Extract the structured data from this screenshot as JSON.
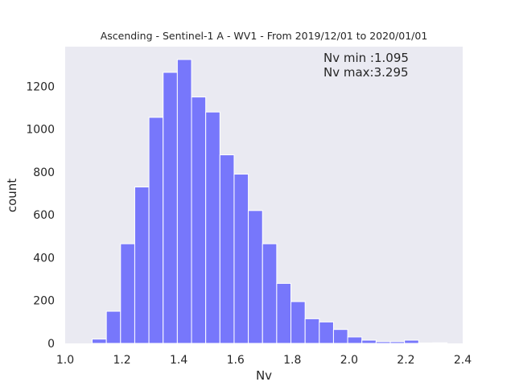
{
  "chart_data": {
    "type": "bar",
    "title": "Ascending - Sentinel-1 A - WV1 - From 2019/12/01 to 2020/01/01",
    "xlabel": "Nv",
    "ylabel": "count",
    "xlim": [
      1.0,
      2.4
    ],
    "ylim": [
      0,
      1385
    ],
    "grid": false,
    "xticks": [
      "1.0",
      "1.2",
      "1.4",
      "1.6",
      "1.8",
      "2.0",
      "2.2",
      "2.4"
    ],
    "yticks": [
      "0",
      "200",
      "400",
      "600",
      "800",
      "1000",
      "1200"
    ],
    "bin_width": 0.05,
    "bins": [
      {
        "x0": 1.095,
        "value": 20
      },
      {
        "x0": 1.145,
        "value": 150
      },
      {
        "x0": 1.195,
        "value": 465
      },
      {
        "x0": 1.245,
        "value": 730
      },
      {
        "x0": 1.295,
        "value": 1055
      },
      {
        "x0": 1.345,
        "value": 1265
      },
      {
        "x0": 1.395,
        "value": 1325
      },
      {
        "x0": 1.445,
        "value": 1150
      },
      {
        "x0": 1.495,
        "value": 1080
      },
      {
        "x0": 1.545,
        "value": 880
      },
      {
        "x0": 1.595,
        "value": 790
      },
      {
        "x0": 1.645,
        "value": 620
      },
      {
        "x0": 1.695,
        "value": 465
      },
      {
        "x0": 1.745,
        "value": 280
      },
      {
        "x0": 1.795,
        "value": 195
      },
      {
        "x0": 1.845,
        "value": 115
      },
      {
        "x0": 1.895,
        "value": 100
      },
      {
        "x0": 1.945,
        "value": 65
      },
      {
        "x0": 1.995,
        "value": 30
      },
      {
        "x0": 2.045,
        "value": 15
      },
      {
        "x0": 2.095,
        "value": 8
      },
      {
        "x0": 2.145,
        "value": 8
      },
      {
        "x0": 2.195,
        "value": 15
      },
      {
        "x0": 2.245,
        "value": 2
      },
      {
        "x0": 2.295,
        "value": 3
      }
    ],
    "annotations": [
      "Nv min :1.095",
      "Nv max:3.295"
    ],
    "colors": {
      "bar": "#7777fb",
      "bar_edge": "#ffffff",
      "plot_bg": "#eaeaf2",
      "text": "#262626"
    }
  }
}
